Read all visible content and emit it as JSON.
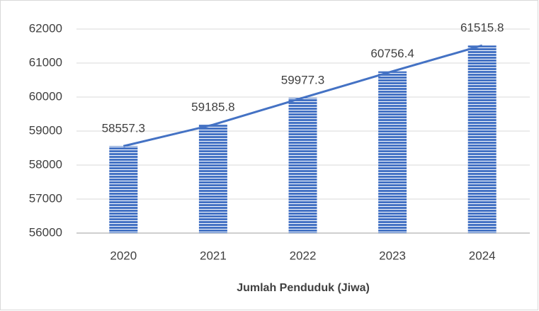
{
  "chart_data": {
    "type": "bar",
    "x_label": "Jumlah Penduduk (Jiwa)",
    "categories": [
      "2020",
      "2021",
      "2022",
      "2023",
      "2024"
    ],
    "values": [
      58557.3,
      59185.8,
      59977.3,
      60756.4,
      61515.8
    ],
    "color": "#4472c4",
    "bar_pattern": "horizontal-stripes",
    "trend_line": true,
    "line_color": "#4472c4",
    "ylim": [
      56000,
      62000
    ],
    "yticks": [
      56000,
      57000,
      58000,
      59000,
      60000,
      61000,
      62000
    ],
    "grid": true
  }
}
